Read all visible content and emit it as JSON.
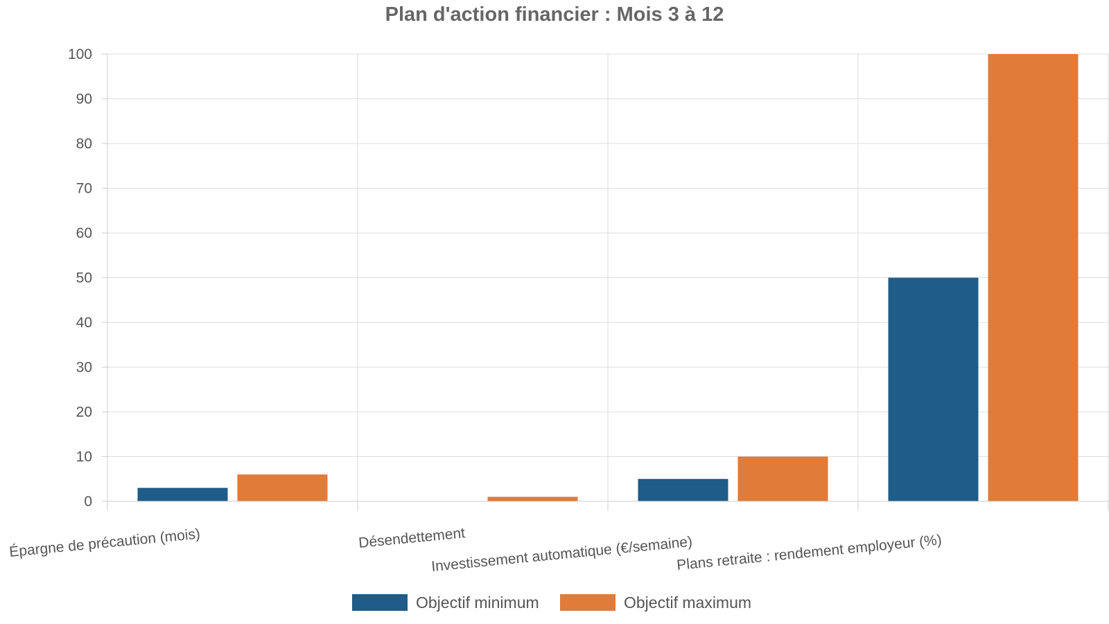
{
  "chart_data": {
    "type": "bar",
    "title": "Plan d'action financier : Mois 3 à 12",
    "xlabel": "",
    "ylabel": "",
    "ylim": [
      0,
      100
    ],
    "yticks": [
      0,
      10,
      20,
      30,
      40,
      50,
      60,
      70,
      80,
      90,
      100
    ],
    "grid": true,
    "legend_position": "bottom",
    "categories": [
      "Épargne de précaution (mois)",
      "Désendettement",
      "Investissement automatique (€/semaine)",
      "Plans retraite : rendement employeur (%)"
    ],
    "series": [
      {
        "name": "Objectif minimum",
        "color": "#1f5c87",
        "values": [
          3,
          0,
          5,
          50
        ]
      },
      {
        "name": "Objectif maximum",
        "color": "#e07b39",
        "values": [
          6,
          1,
          10,
          100
        ]
      }
    ]
  }
}
